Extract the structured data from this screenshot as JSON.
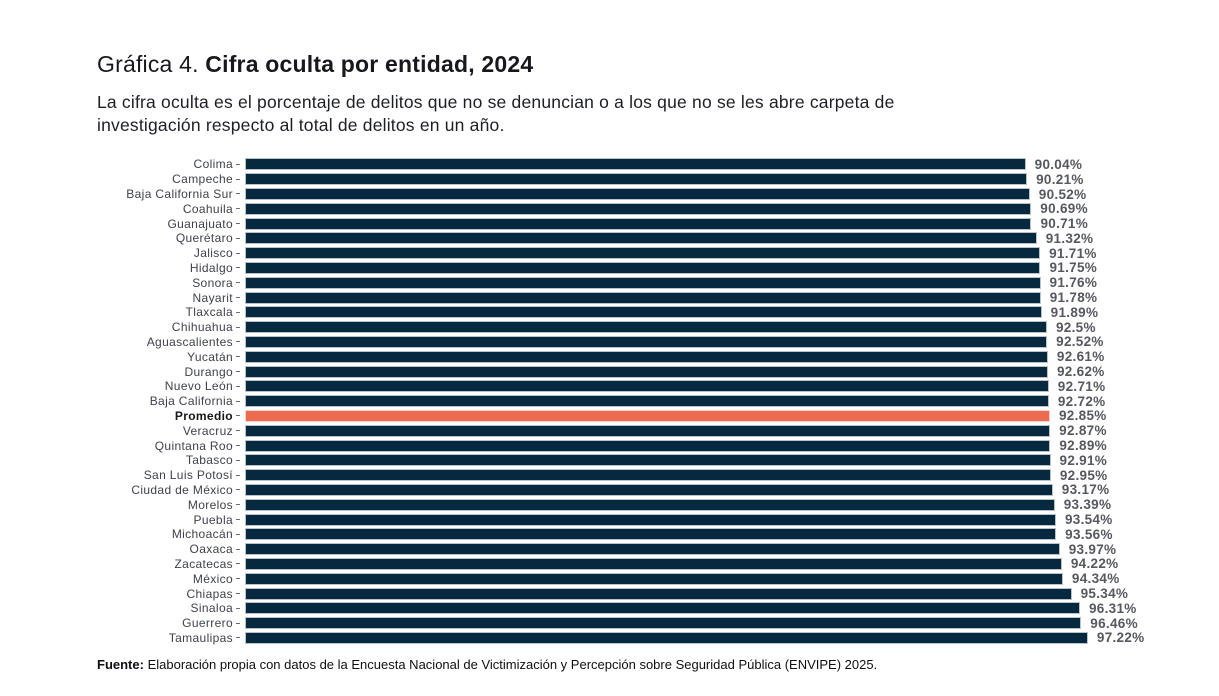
{
  "header": {
    "title_prefix": "Gráfica 4. ",
    "title_main": "Cifra oculta por entidad, 2024",
    "subtitle_lines": [
      "La cifra oculta es el porcentaje de delitos que no se denuncian o a los que no se les abre carpeta de",
      "investigación respecto al total de delitos en un año."
    ]
  },
  "chart_data": {
    "type": "bar",
    "orientation": "horizontal",
    "title": "Cifra oculta por entidad, 2024",
    "categories": [
      "Colima",
      "Campeche",
      "Baja California Sur",
      "Coahuila",
      "Guanajuato",
      "Querétaro",
      "Jalisco",
      "Hidalgo",
      "Sonora",
      "Nayarit",
      "Tlaxcala",
      "Chihuahua",
      "Aguascalientes",
      "Yucatán",
      "Durango",
      "Nuevo León",
      "Baja California",
      "Promedio",
      "Veracruz",
      "Quintana Roo",
      "Tabasco",
      "San Luis Potosí",
      "Ciudad de México",
      "Morelos",
      "Puebla",
      "Michoacán",
      "Oaxaca",
      "Zacatecas",
      "México",
      "Chiapas",
      "Sinaloa",
      "Guerrero",
      "Tamaulipas"
    ],
    "values": [
      90.04,
      90.21,
      90.52,
      90.69,
      90.71,
      91.32,
      91.71,
      91.75,
      91.76,
      91.78,
      91.89,
      92.5,
      92.52,
      92.61,
      92.62,
      92.71,
      92.72,
      92.85,
      92.87,
      92.89,
      92.91,
      92.95,
      93.17,
      93.39,
      93.54,
      93.56,
      93.97,
      94.22,
      94.34,
      95.34,
      96.31,
      96.46,
      97.22
    ],
    "value_labels": [
      "90.04%",
      "90.21%",
      "90.52%",
      "90.69%",
      "90.71%",
      "91.32%",
      "91.71%",
      "91.75%",
      "91.76%",
      "91.78%",
      "91.89%",
      "92.5%",
      "92.52%",
      "92.61%",
      "92.62%",
      "92.71%",
      "92.72%",
      "92.85%",
      "92.87%",
      "92.89%",
      "92.91%",
      "92.95%",
      "93.17%",
      "93.39%",
      "93.54%",
      "93.56%",
      "93.97%",
      "94.22%",
      "94.34%",
      "95.34%",
      "96.31%",
      "96.46%",
      "97.22%"
    ],
    "highlight_index": 17,
    "highlight_category": "Promedio",
    "xlim": [
      0,
      100
    ],
    "grid": false,
    "legend": false,
    "bar_color": "#06293F",
    "highlight_color": "#EC6B4E"
  },
  "footer": {
    "source_label": "Fuente:",
    "source_text": " Elaboración propia con datos de la Encuesta Nacional de Victimización y Percepción sobre Seguridad Pública (ENVIPE) 2025."
  }
}
